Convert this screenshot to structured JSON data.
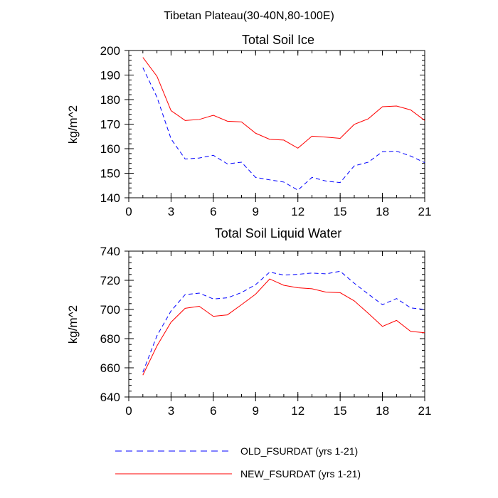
{
  "title": "Tibetan Plateau(30-40N,80-100E)",
  "chart_data": [
    {
      "type": "line",
      "title": "Total Soil Ice",
      "xlabel": "",
      "ylabel": "kg/m^2",
      "xlim": [
        0,
        21
      ],
      "ylim": [
        140,
        200
      ],
      "xticks": [
        0,
        3,
        6,
        9,
        12,
        15,
        18,
        21
      ],
      "yticks": [
        140,
        150,
        160,
        170,
        180,
        190,
        200
      ],
      "x": [
        1,
        2,
        3,
        4,
        5,
        6,
        7,
        8,
        9,
        10,
        11,
        12,
        13,
        14,
        15,
        16,
        17,
        18,
        19,
        20,
        21
      ],
      "series": [
        {
          "name": "OLD_FSURDAT (yrs 1-21)",
          "color": "#0000ff",
          "dash": "dashed",
          "values": [
            193,
            181,
            164,
            155.8,
            156.2,
            157.3,
            153.8,
            154.5,
            148.3,
            147.3,
            146.4,
            143.1,
            148.3,
            146.8,
            146.2,
            153,
            154.5,
            158.8,
            159,
            157,
            154.3
          ]
        },
        {
          "name": "NEW_FSURDAT (yrs 1-21)",
          "color": "#ff0000",
          "dash": "solid",
          "values": [
            197.2,
            189.5,
            175.5,
            171.5,
            171.9,
            173.6,
            171.2,
            170.9,
            166.3,
            163.8,
            163.5,
            160.2,
            165.1,
            164.7,
            164.2,
            169.9,
            172.2,
            177.1,
            177.4,
            175.8,
            171.5
          ]
        }
      ]
    },
    {
      "type": "line",
      "title": "Total Soil Liquid Water",
      "xlabel": "",
      "ylabel": "kg/m^2",
      "xlim": [
        0,
        21
      ],
      "ylim": [
        640,
        740
      ],
      "xticks": [
        0,
        3,
        6,
        9,
        12,
        15,
        18,
        21
      ],
      "yticks": [
        640,
        660,
        680,
        700,
        720,
        740
      ],
      "x": [
        1,
        2,
        3,
        4,
        5,
        6,
        7,
        8,
        9,
        10,
        11,
        12,
        13,
        14,
        15,
        16,
        17,
        18,
        19,
        20,
        21
      ],
      "series": [
        {
          "name": "OLD_FSURDAT (yrs 1-21)",
          "color": "#0000ff",
          "dash": "dashed",
          "values": [
            657,
            682,
            699,
            710.2,
            711.2,
            707.2,
            708,
            711.6,
            717,
            725.6,
            723.6,
            724.1,
            725,
            724.4,
            726.2,
            718,
            710.5,
            703.3,
            707.5,
            701.1,
            700
          ]
        },
        {
          "name": "NEW_FSURDAT (yrs 1-21)",
          "color": "#ff0000",
          "dash": "solid",
          "values": [
            655,
            675,
            691.3,
            700.8,
            702.2,
            695.3,
            696.3,
            703.3,
            710.5,
            720.9,
            716.6,
            714.9,
            714.2,
            711.9,
            711.5,
            705.9,
            697.3,
            688.4,
            692.5,
            685,
            684
          ]
        }
      ]
    }
  ],
  "legend": [
    {
      "label": "OLD_FSURDAT (yrs 1-21)",
      "color": "#0000ff",
      "dash": "dashed"
    },
    {
      "label": "NEW_FSURDAT (yrs 1-21)",
      "color": "#ff0000",
      "dash": "solid"
    }
  ]
}
